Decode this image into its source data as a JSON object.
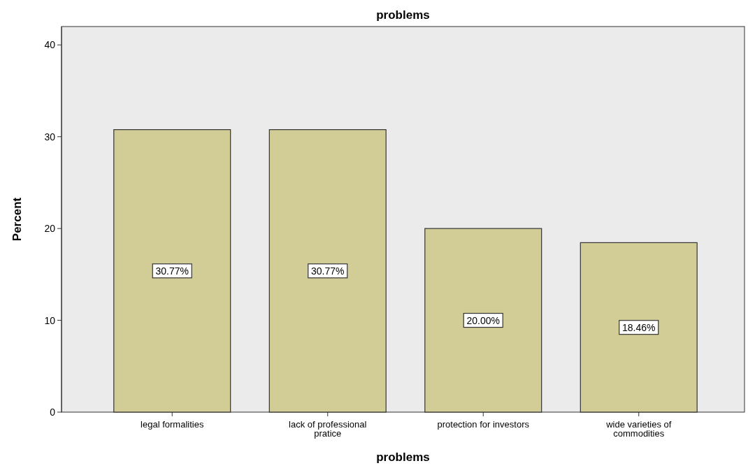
{
  "chart_data": {
    "type": "bar",
    "title": "problems",
    "xlabel": "problems",
    "ylabel": "Percent",
    "categories": [
      "legal formalities",
      "lack of professional pratice",
      "protection for investors",
      "wide varieties of commodities"
    ],
    "values": [
      30.77,
      30.77,
      20.0,
      18.46
    ],
    "value_labels": [
      "30.77%",
      "30.77%",
      "20.00%",
      "18.46%"
    ],
    "color": "#d2cc96",
    "ylim": [
      0,
      42
    ],
    "yticks": [
      0,
      10,
      20,
      30,
      40
    ],
    "grid": false
  }
}
